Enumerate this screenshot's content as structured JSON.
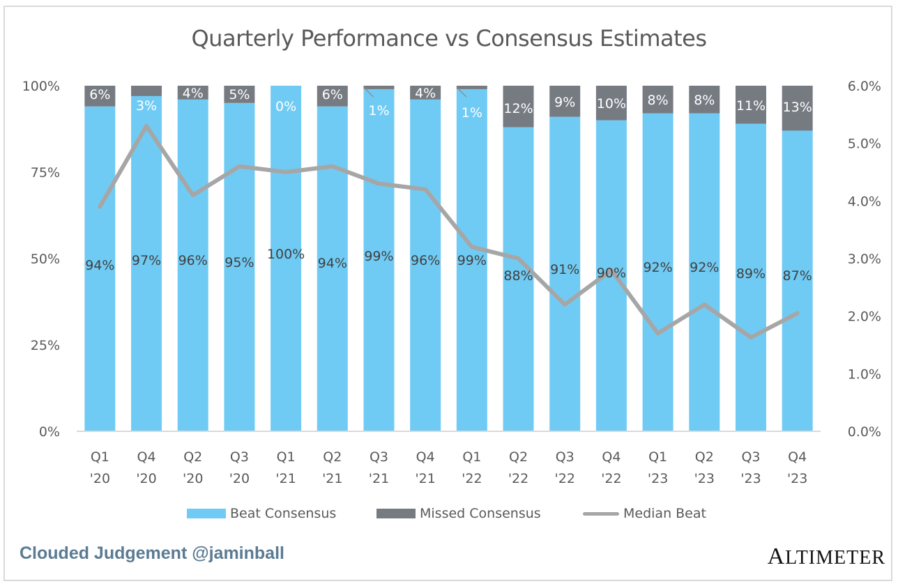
{
  "chart_data": {
    "type": "bar",
    "stacked": true,
    "title": "Quarterly Performance vs Consensus Estimates",
    "xlabel": "",
    "ylabel": "",
    "categories": [
      [
        "Q1",
        "'20"
      ],
      [
        "Q4",
        "'20"
      ],
      [
        "Q2",
        "'20"
      ],
      [
        "Q3",
        "'20"
      ],
      [
        "Q1",
        "'21"
      ],
      [
        "Q2",
        "'21"
      ],
      [
        "Q3",
        "'21"
      ],
      [
        "Q4",
        "'21"
      ],
      [
        "Q1",
        "'22"
      ],
      [
        "Q2",
        "'22"
      ],
      [
        "Q3",
        "'22"
      ],
      [
        "Q4",
        "'22"
      ],
      [
        "Q1",
        "'23"
      ],
      [
        "Q2",
        "'23"
      ],
      [
        "Q3",
        "'23"
      ],
      [
        "Q4",
        "'23"
      ]
    ],
    "series": [
      {
        "name": "Beat Consensus",
        "type": "bar",
        "axis": "left",
        "color": "#70cbf4",
        "values": [
          94,
          97,
          96,
          95,
          100,
          94,
          99,
          96,
          99,
          88,
          91,
          90,
          92,
          92,
          89,
          87
        ],
        "labels": [
          "94%",
          "97%",
          "96%",
          "95%",
          "100%",
          "94%",
          "99%",
          "96%",
          "99%",
          "88%",
          "91%",
          "90%",
          "92%",
          "92%",
          "89%",
          "87%"
        ],
        "label_color": "#404040"
      },
      {
        "name": "Missed Consensus",
        "type": "bar",
        "axis": "left",
        "color": "#767b82",
        "values": [
          6,
          3,
          4,
          5,
          0,
          6,
          1,
          4,
          1,
          12,
          9,
          10,
          8,
          8,
          11,
          13
        ],
        "labels": [
          "6%",
          "3%",
          "4%",
          "5%",
          "0%",
          "6%",
          "1%",
          "4%",
          "1%",
          "12%",
          "9%",
          "10%",
          "8%",
          "8%",
          "11%",
          "13%"
        ],
        "label_color": "#ffffff"
      },
      {
        "name": "Median Beat",
        "type": "line",
        "axis": "right",
        "color": "#a6a6a6",
        "values": [
          3.9,
          5.3,
          4.1,
          4.6,
          4.5,
          4.6,
          4.3,
          4.2,
          3.2,
          3.0,
          2.2,
          2.8,
          1.7,
          2.2,
          1.63,
          2.05
        ]
      }
    ],
    "y_left": {
      "ylim": [
        0,
        100
      ],
      "ticks": [
        0,
        25,
        50,
        75,
        100
      ],
      "tick_labels": [
        "0%",
        "25%",
        "50%",
        "75%",
        "100%"
      ]
    },
    "y_right": {
      "ylim": [
        0,
        6
      ],
      "ticks": [
        0,
        1,
        2,
        3,
        4,
        5,
        6
      ],
      "tick_labels": [
        "0.0%",
        "1.0%",
        "2.0%",
        "3.0%",
        "4.0%",
        "5.0%",
        "6.0%"
      ]
    },
    "grid": false,
    "legend": {
      "placement": "bottom",
      "entries": [
        "Beat Consensus",
        "Missed Consensus",
        "Median Beat"
      ]
    }
  },
  "footer": {
    "credit": "Clouded Judgement @jaminball",
    "brand_first": "A",
    "brand_rest": "LTIMETER"
  }
}
